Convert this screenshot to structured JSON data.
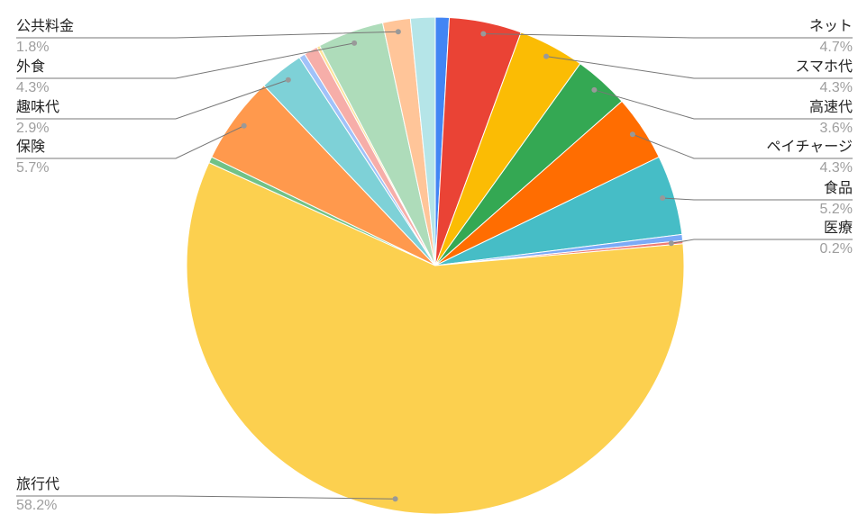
{
  "chart_data": {
    "type": "pie",
    "categories": [
      null,
      "ネット",
      "スマホ代",
      "高速代",
      "ペイチャージ",
      "食品",
      null,
      "医療",
      "旅行代",
      null,
      "保険",
      "趣味代",
      null,
      null,
      null,
      "外食",
      "公共料金",
      null
    ],
    "values": [
      0.9,
      4.7,
      4.3,
      3.6,
      4.3,
      5.2,
      0.4,
      0.2,
      58.2,
      0.4,
      5.7,
      2.9,
      0.4,
      0.9,
      0.2,
      4.3,
      1.8,
      1.6
    ],
    "value_labels": [
      null,
      "4.7%",
      "4.3%",
      "3.6%",
      "4.3%",
      "5.2%",
      null,
      "0.2%",
      "58.2%",
      null,
      "5.7%",
      "2.9%",
      null,
      null,
      null,
      "4.3%",
      "1.8%",
      null
    ],
    "colors": [
      "#4285f4",
      "#ea4335",
      "#fbbc04",
      "#34a853",
      "#ff6d01",
      "#46bdc6",
      "#7baaf7",
      "#f07b72",
      "#fcd04f",
      "#71c287",
      "#ff994d",
      "#7ed1d7",
      "#a0c2f9",
      "#f6aea9",
      "#fde49b",
      "#aedcba",
      "#ffc599",
      "#b5e5e8"
    ]
  }
}
